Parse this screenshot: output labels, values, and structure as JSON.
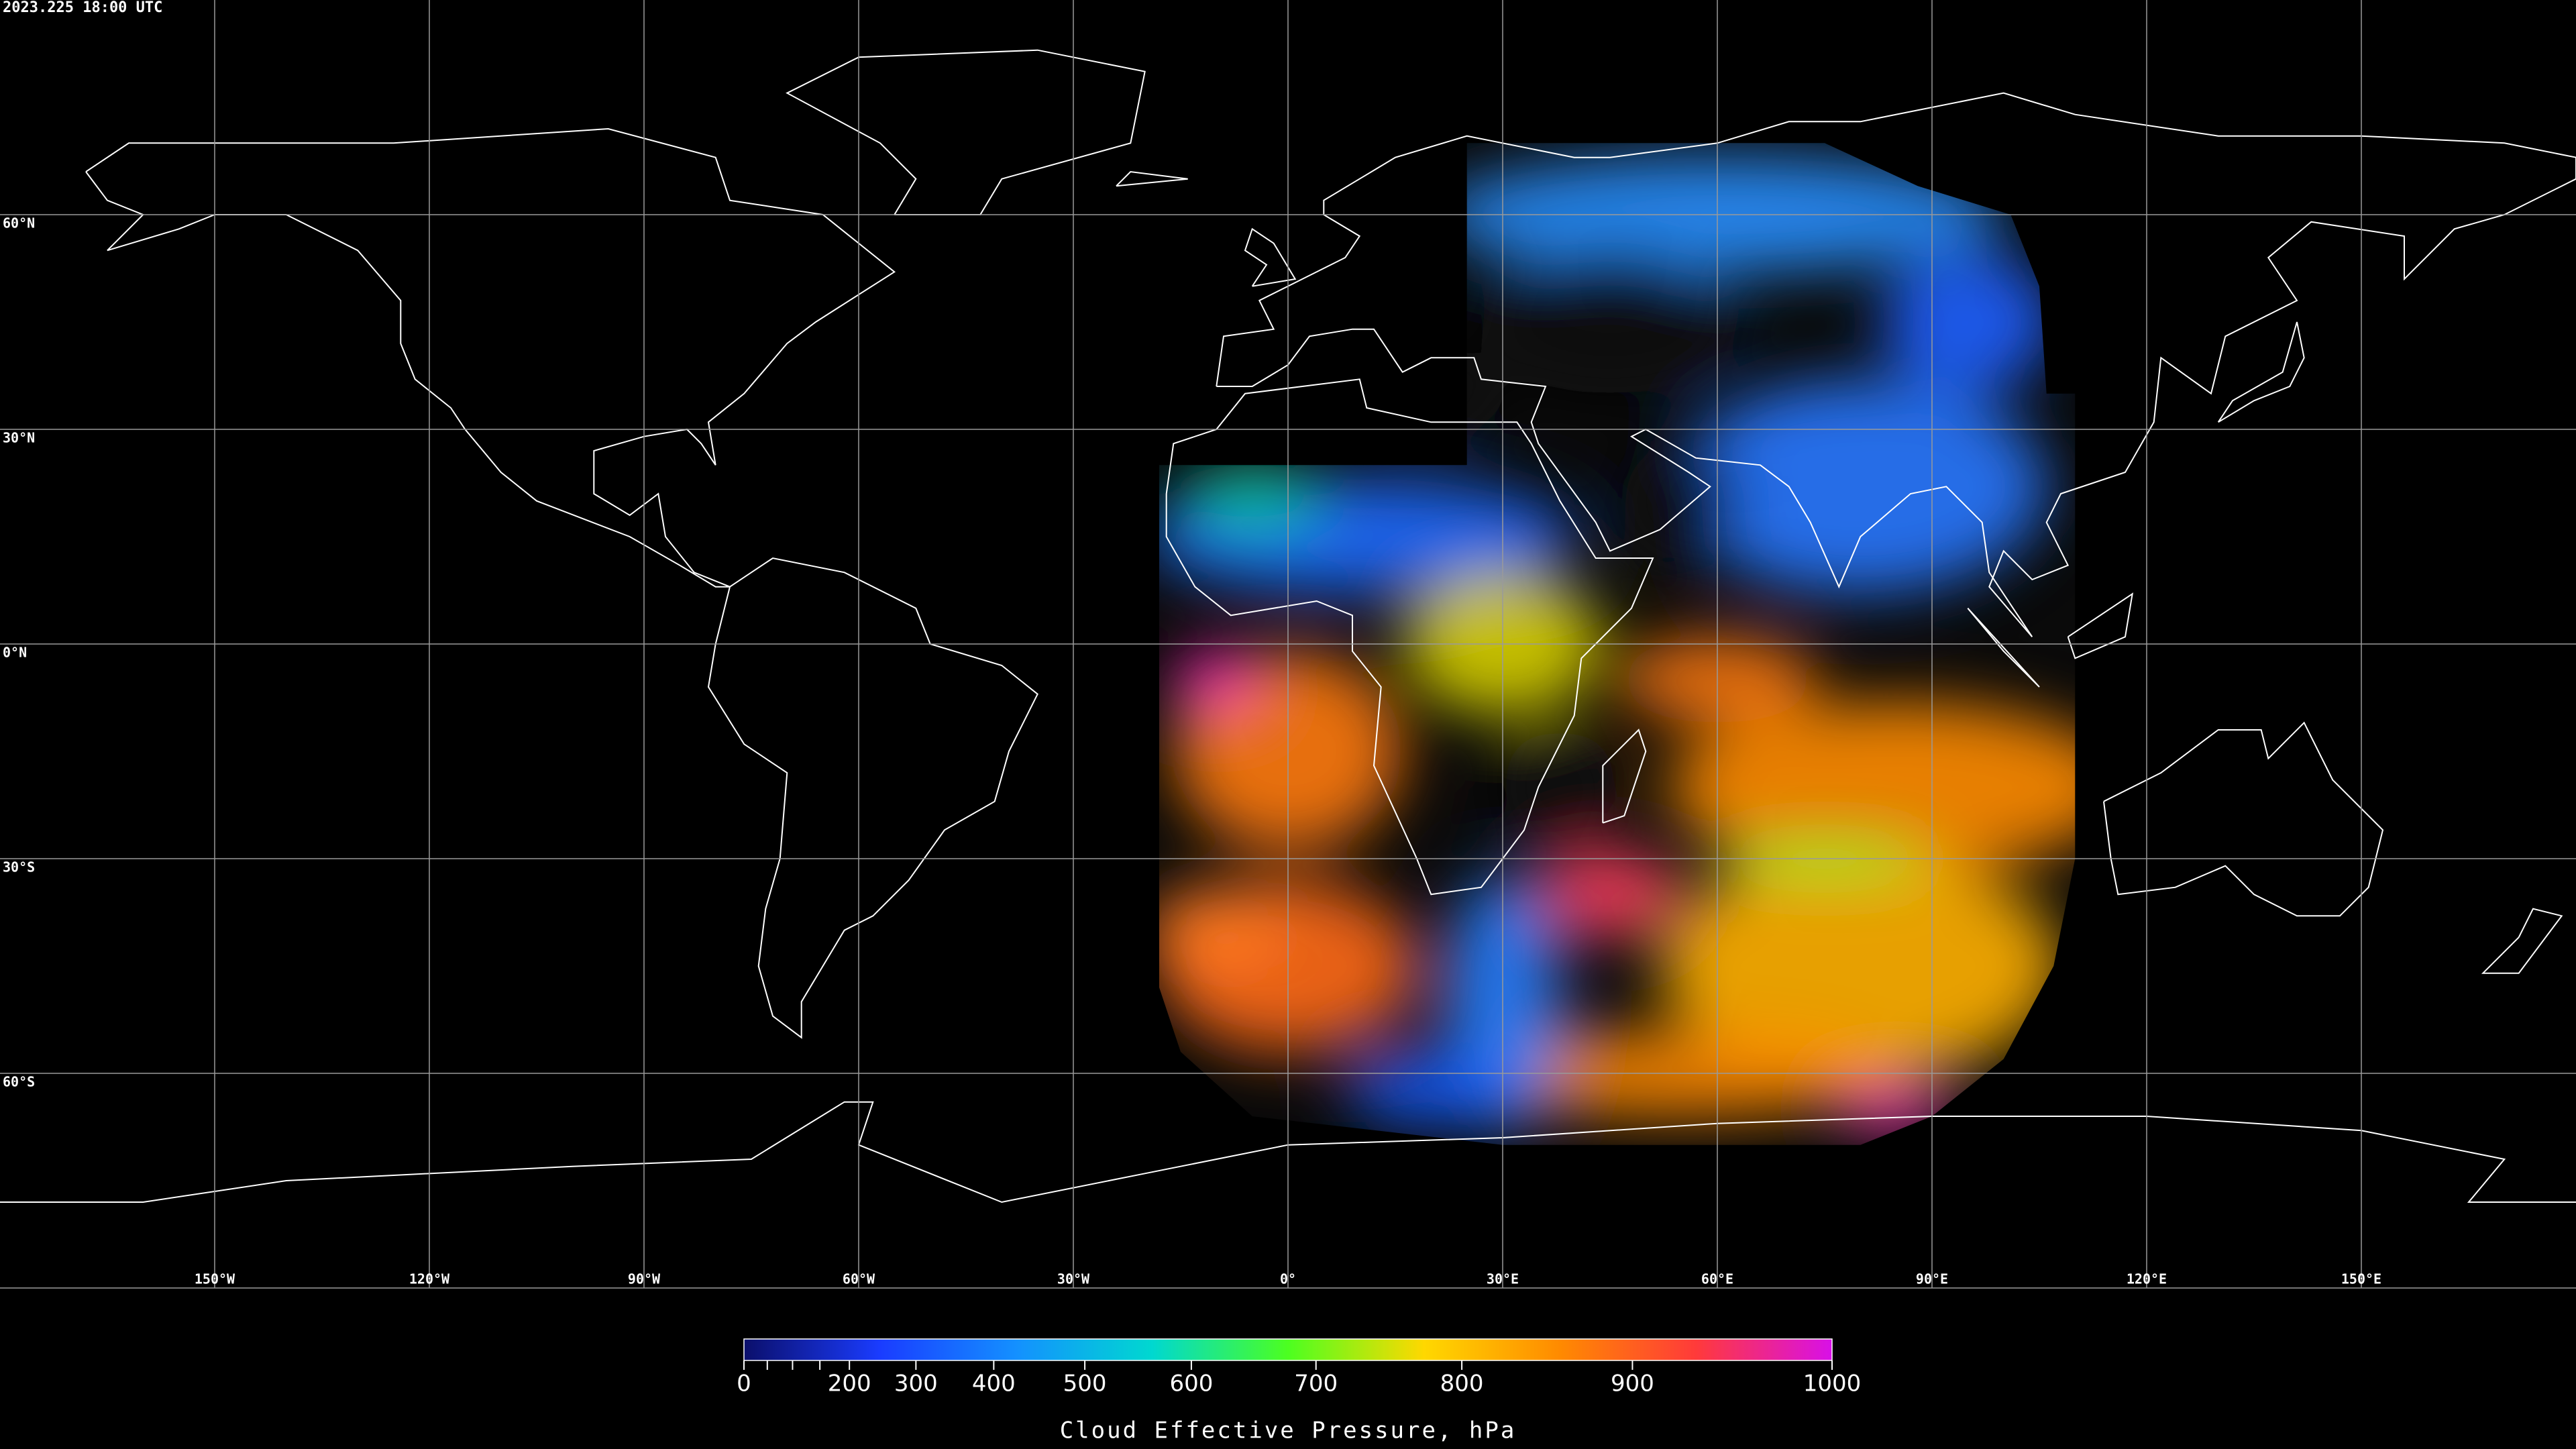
{
  "timestamp": "2023.225 18:00 UTC",
  "map": {
    "xticks": [
      {
        "value": -150,
        "label": "150°W"
      },
      {
        "value": -120,
        "label": "120°W"
      },
      {
        "value": -90,
        "label": "90°W"
      },
      {
        "value": -60,
        "label": "60°W"
      },
      {
        "value": -30,
        "label": "30°W"
      },
      {
        "value": 0,
        "label": "0°"
      },
      {
        "value": 30,
        "label": "30°E"
      },
      {
        "value": 60,
        "label": "60°E"
      },
      {
        "value": 90,
        "label": "90°E"
      },
      {
        "value": 120,
        "label": "120°E"
      },
      {
        "value": 150,
        "label": "150°E"
      }
    ],
    "yticks": [
      {
        "value": 60,
        "label": "60°N"
      },
      {
        "value": 30,
        "label": "30°N"
      },
      {
        "value": 0,
        "label": "0°N"
      },
      {
        "value": -30,
        "label": "30°S"
      },
      {
        "value": -60,
        "label": "60°S"
      }
    ]
  },
  "colorbar": {
    "label": "Cloud Effective Pressure, hPa",
    "lim": [
      0,
      1000
    ],
    "ticks": [
      0,
      200,
      300,
      400,
      500,
      600,
      700,
      800,
      900,
      1000
    ],
    "minor_ticks": [
      50,
      100,
      150
    ],
    "colors": [
      "#0b0f6b",
      "#1a3cff",
      "#1490ff",
      "#00d8d0",
      "#4cff20",
      "#ffd800",
      "#ff8a00",
      "#ff3a3a",
      "#d810e8"
    ]
  }
}
